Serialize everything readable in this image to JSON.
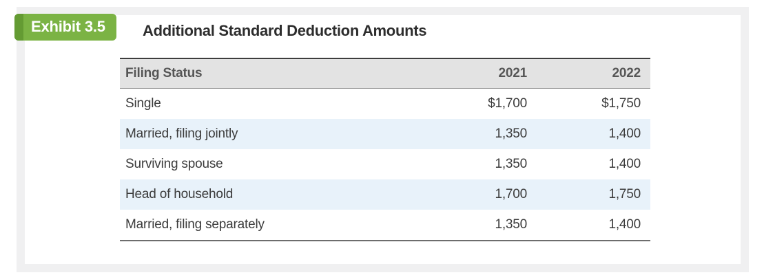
{
  "exhibit": {
    "badge_label": "Exhibit 3.5",
    "title": "Additional Standard Deduction Amounts"
  },
  "table": {
    "columns": [
      "Filing Status",
      "2021",
      "2022"
    ],
    "rows": [
      [
        "Single",
        "$1,700",
        "$1,750"
      ],
      [
        "Married, filing jointly",
        "1,350",
        "1,400"
      ],
      [
        "Surviving spouse",
        "1,350",
        "1,400"
      ],
      [
        "Head of household",
        "1,700",
        "1,750"
      ],
      [
        "Married, filing separately",
        "1,350",
        "1,400"
      ]
    ]
  },
  "chart_data": {
    "type": "table",
    "title": "Additional Standard Deduction Amounts",
    "categories": [
      "Single",
      "Married, filing jointly",
      "Surviving spouse",
      "Head of household",
      "Married, filing separately"
    ],
    "series": [
      {
        "name": "2021",
        "values": [
          1700,
          1350,
          1350,
          1700,
          1350
        ]
      },
      {
        "name": "2022",
        "values": [
          1750,
          1400,
          1400,
          1750,
          1400
        ]
      }
    ]
  },
  "colors": {
    "badge_green": "#7bb344",
    "badge_fold_green": "#649b33",
    "header_row_gray": "#e3e3e3",
    "alt_row_blue": "#e8f2fa",
    "frame_gray": "#f0f0f1",
    "title_text": "#2d2d2d",
    "body_text": "#3b3b3b"
  }
}
